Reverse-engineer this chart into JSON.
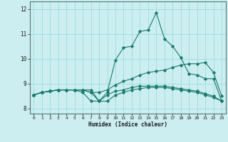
{
  "xlabel": "Humidex (Indice chaleur)",
  "bg_color": "#cceef0",
  "grid_color": "#99dddd",
  "line_color": "#1a7a6e",
  "xlim": [
    -0.5,
    23.5
  ],
  "ylim": [
    7.8,
    12.3
  ],
  "xticks": [
    0,
    1,
    2,
    3,
    4,
    5,
    6,
    7,
    8,
    9,
    10,
    11,
    12,
    13,
    14,
    15,
    16,
    17,
    18,
    19,
    20,
    21,
    22,
    23
  ],
  "yticks": [
    8,
    9,
    10,
    11,
    12
  ],
  "curve1": [
    8.55,
    8.65,
    8.7,
    8.75,
    8.75,
    8.75,
    8.75,
    8.75,
    8.3,
    8.65,
    9.95,
    10.45,
    10.5,
    11.1,
    11.15,
    11.85,
    10.8,
    10.5,
    10.05,
    9.4,
    9.35,
    9.2,
    9.2,
    8.3
  ],
  "curve2": [
    8.55,
    8.65,
    8.7,
    8.75,
    8.75,
    8.75,
    8.75,
    8.65,
    8.65,
    8.75,
    8.95,
    9.1,
    9.2,
    9.35,
    9.45,
    9.5,
    9.55,
    9.65,
    9.75,
    9.8,
    9.8,
    9.85,
    9.45,
    8.5
  ],
  "curve3": [
    8.55,
    8.65,
    8.7,
    8.75,
    8.75,
    8.75,
    8.75,
    8.65,
    8.3,
    8.3,
    8.55,
    8.65,
    8.75,
    8.8,
    8.85,
    8.85,
    8.85,
    8.8,
    8.75,
    8.7,
    8.65,
    8.55,
    8.45,
    8.3
  ],
  "curve4": [
    8.55,
    8.65,
    8.7,
    8.75,
    8.75,
    8.75,
    8.65,
    8.3,
    8.3,
    8.55,
    8.7,
    8.75,
    8.85,
    8.9,
    8.9,
    8.9,
    8.9,
    8.85,
    8.8,
    8.75,
    8.7,
    8.6,
    8.5,
    8.3
  ]
}
